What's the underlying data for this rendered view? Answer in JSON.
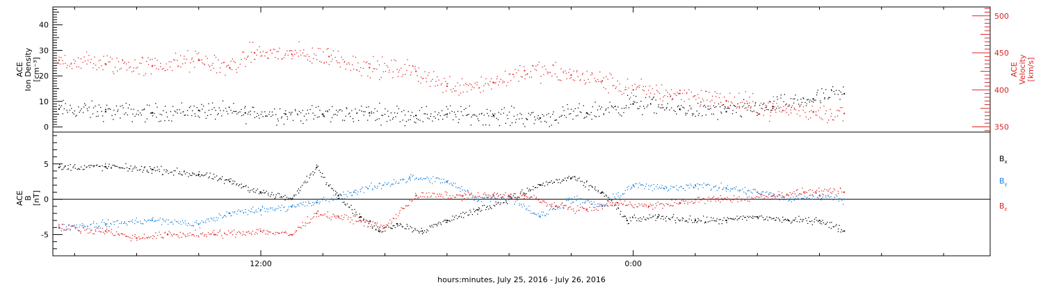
{
  "figure": {
    "xaxis_title": "hours:minutes, July 25, 2016 - July 26, 2016",
    "x_tick_labels": [
      "12:00",
      "0:00"
    ]
  },
  "chart_data": [
    {
      "type": "scatter",
      "panel": "top",
      "ylabel_left": [
        "ACE",
        "Ion Density",
        "[cm⁻³]"
      ],
      "ylabel_right": [
        "ACE",
        "Velocity",
        "[km/s]"
      ],
      "x_unit": "hours since 2016-07-25 00:00 UT",
      "xlim": [
        5.3,
        35.5
      ],
      "ylim_left": [
        -2,
        47
      ],
      "yticks_left": [
        0,
        10,
        20,
        30,
        40
      ],
      "ylim_right": [
        343,
        512
      ],
      "yticks_right": [
        350,
        400,
        450,
        500
      ],
      "grid": false,
      "series": [
        {
          "axis": "left",
          "color": "#000000",
          "x": [
            5.5,
            7,
            8.5,
            10,
            11.5,
            12.8,
            14,
            15.5,
            17,
            18,
            19.5,
            21,
            22.5,
            24,
            25.5,
            27,
            28.5,
            29.8,
            30.8
          ],
          "y": [
            7,
            6,
            5.5,
            6.5,
            5.5,
            5,
            5,
            5.5,
            4.5,
            5,
            4.5,
            3.5,
            5.5,
            9,
            7,
            6,
            8,
            11,
            13
          ]
        },
        {
          "axis": "right",
          "color": "#dd2020",
          "x": [
            5.5,
            7,
            8.5,
            10,
            11,
            11.8,
            13,
            14.2,
            15.5,
            17,
            18,
            19.5,
            20.5,
            22,
            23,
            24,
            25.5,
            27,
            28.5,
            29.8,
            30.8
          ],
          "y": [
            440,
            435,
            432,
            440,
            430,
            450,
            448,
            445,
            430,
            425,
            405,
            410,
            426,
            420,
            412,
            400,
            395,
            385,
            375,
            370,
            368
          ]
        }
      ]
    },
    {
      "type": "scatter",
      "panel": "bottom",
      "ylabel_left": [
        "ACE",
        "B",
        "[nT]"
      ],
      "x_unit": "hours since 2016-07-25 00:00 UT",
      "xlim": [
        5.3,
        35.5
      ],
      "ylim": [
        -8,
        9.5
      ],
      "yticks": [
        -5,
        0,
        5
      ],
      "zero_line": true,
      "grid": false,
      "series": [
        {
          "name": "Bx",
          "color": "#000000",
          "x": [
            5.5,
            7,
            8.5,
            10,
            11,
            12,
            13,
            13.8,
            14.5,
            15.2,
            15.8,
            16.4,
            17.2,
            18,
            19,
            20,
            21,
            22,
            23,
            23.8,
            24.8,
            26,
            27,
            28,
            29,
            30,
            30.8
          ],
          "y": [
            4.5,
            4.6,
            4.2,
            3.5,
            2.5,
            1,
            0,
            4.5,
            0.5,
            -2.5,
            -4.5,
            -3.5,
            -4.5,
            -3,
            -1.5,
            0,
            2,
            3,
            1,
            -3,
            -2.5,
            -3,
            -3,
            -2.5,
            -3,
            -3,
            -4.5
          ]
        },
        {
          "name": "By",
          "color": "#1a7fd6",
          "x": [
            5.5,
            7,
            8.5,
            10,
            11,
            12,
            13,
            13.8,
            15,
            16.8,
            18,
            19,
            20,
            21,
            22,
            23,
            24,
            25,
            26,
            27,
            28,
            29,
            30,
            30.8
          ],
          "y": [
            -4,
            -3.5,
            -3,
            -3.5,
            -2,
            -1.5,
            -1,
            -0.5,
            1,
            3,
            2.5,
            0,
            0.5,
            -2.5,
            0,
            -1,
            2,
            1.5,
            2,
            1.5,
            1,
            0,
            0.5,
            0
          ]
        },
        {
          "name": "Bz",
          "color": "#e02020",
          "x": [
            5.5,
            7,
            8,
            9,
            10.5,
            12,
            13,
            13.8,
            14.5,
            15.2,
            16,
            17,
            18.5,
            19.5,
            20.5,
            21.5,
            22.5,
            23.5,
            24.5,
            25.5,
            26.5,
            27.5,
            28.5,
            29.5,
            30.8
          ],
          "y": [
            -4,
            -4.5,
            -5.5,
            -5,
            -5,
            -4.5,
            -5,
            -2,
            -2.5,
            -3,
            -4,
            0.5,
            0.5,
            0.5,
            0.5,
            -1,
            -1.5,
            -0.5,
            -1,
            -0.5,
            0,
            0,
            0.5,
            1,
            1
          ]
        }
      ],
      "legend": [
        {
          "label": "B",
          "sub": "x",
          "color": "#000000"
        },
        {
          "label": "B",
          "sub": "y",
          "color": "#1a7fd6"
        },
        {
          "label": "B",
          "sub": "z",
          "color": "#e02020"
        }
      ]
    }
  ]
}
